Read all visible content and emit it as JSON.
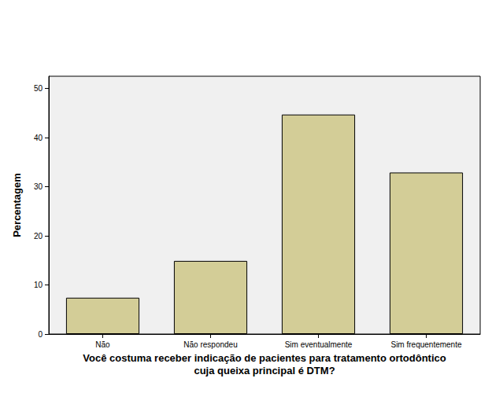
{
  "chart_data": {
    "type": "bar",
    "x_label": "Você costuma receber indicação de pacientes para tratamento ortodôntico\ncuja queixa principal é DTM?",
    "y_label": "Percentagem",
    "categories": [
      "Não",
      "Não respondeu",
      "Sim eventualmente",
      "Sim frequentemente"
    ],
    "values": [
      7.4,
      14.9,
      44.7,
      32.9
    ],
    "color": "#d3cd97",
    "ylim": [
      0,
      52.5
    ],
    "yticks": [
      0,
      10,
      20,
      30,
      40,
      50
    ],
    "grid": false
  }
}
